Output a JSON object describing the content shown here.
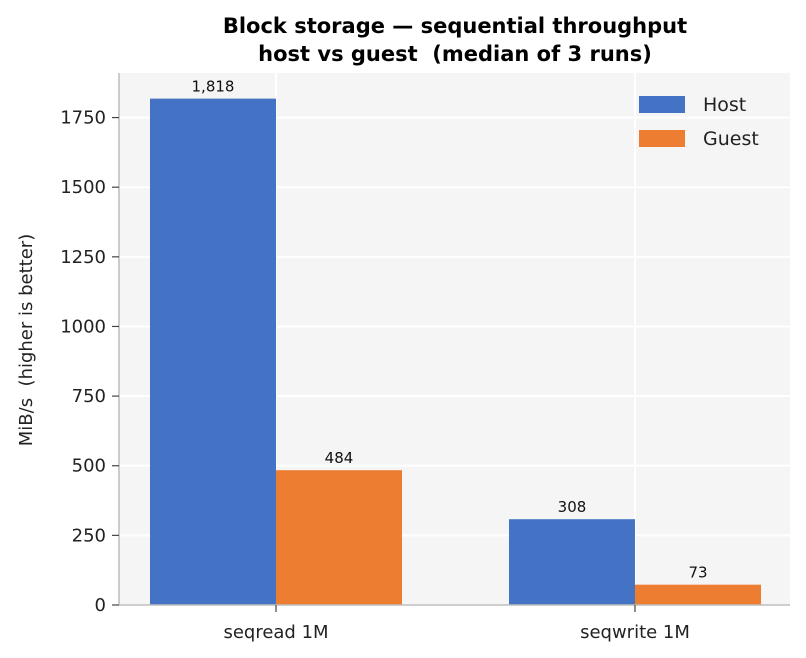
{
  "chart_data": {
    "type": "bar",
    "title": "Block storage — sequential throughput",
    "subtitle": "host vs guest  (median of 3 runs)",
    "xlabel": "",
    "ylabel": "MiB/s  (higher is better)",
    "categories": [
      "seqread 1M",
      "seqwrite 1M"
    ],
    "series": [
      {
        "name": "Host",
        "values": [
          1818,
          308
        ],
        "labels": [
          "1,818",
          "308"
        ],
        "color": "#4472C4"
      },
      {
        "name": "Guest",
        "values": [
          484,
          73
        ],
        "labels": [
          "484",
          "73"
        ],
        "color": "#ED7D31"
      }
    ],
    "ylim": [
      0,
      1910
    ],
    "yticks": [
      0,
      250,
      500,
      750,
      1000,
      1250,
      1500,
      1750
    ],
    "grid": true,
    "legend_position": "top-right",
    "plot_background": "#F5F5F5"
  }
}
